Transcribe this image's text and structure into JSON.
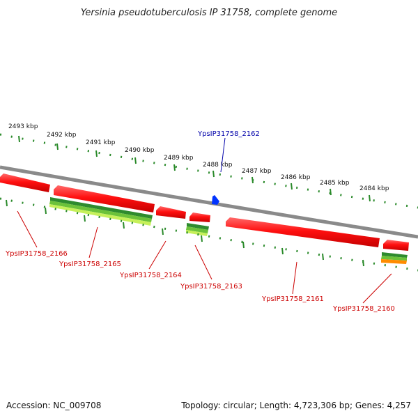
{
  "title": "Yersinia pseudotuberculosis IP 31758, complete genome",
  "footer": {
    "accession": "Accession: NC_009708",
    "summary": "Topology: circular; Length: 4,723,306 bp; Genes: 4,257"
  },
  "scale": {
    "unit": "kbp",
    "labels": [
      "2493 kbp",
      "2492 kbp",
      "2491 kbp",
      "2490 kbp",
      "2489 kbp",
      "2488 kbp",
      "2487 kbp",
      "2486 kbp",
      "2485 kbp",
      "2484 kbp"
    ]
  },
  "genes": [
    {
      "id": "YpsIP31758_2166",
      "color": "#cc0000"
    },
    {
      "id": "YpsIP31758_2165",
      "color": "#cc0000"
    },
    {
      "id": "YpsIP31758_2164",
      "color": "#cc0000"
    },
    {
      "id": "YpsIP31758_2163",
      "color": "#cc0000"
    },
    {
      "id": "YpsIP31758_2162",
      "color": "#0000aa"
    },
    {
      "id": "YpsIP31758_2161",
      "color": "#cc0000"
    },
    {
      "id": "YpsIP31758_2160",
      "color": "#cc0000"
    }
  ],
  "colors": {
    "backbone": "#8a8a8a",
    "gene_red": "#ff1a1a",
    "gene_green_dark": "#2e8b2e",
    "gene_green_light": "#9be04a",
    "gene_orange": "#ff8c00",
    "gene_blue": "#0033ff",
    "tick_green": "#2a8a2a"
  }
}
